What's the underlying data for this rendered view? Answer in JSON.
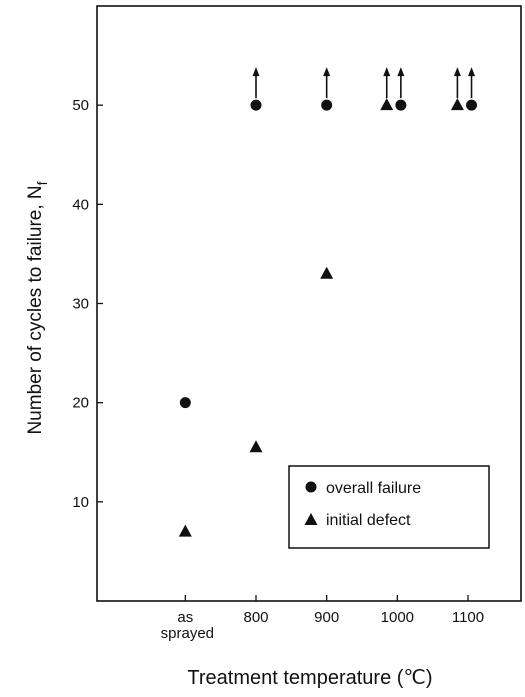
{
  "chart_data": {
    "type": "scatter",
    "xlabel": "Treatment temperature (℃)",
    "ylabel_main": "Number of cycles to failure, N",
    "ylabel_sub": "f",
    "x_tick_labels": [
      {
        "value": 700,
        "lines": [
          "as",
          "sprayed"
        ]
      },
      {
        "value": 800,
        "lines": [
          "800"
        ]
      },
      {
        "value": 900,
        "lines": [
          "900"
        ]
      },
      {
        "value": 1000,
        "lines": [
          "1000"
        ]
      },
      {
        "value": 1100,
        "lines": [
          "1100"
        ]
      }
    ],
    "y_ticks": [
      10,
      20,
      30,
      40,
      50
    ],
    "xlim": [
      575,
      1175
    ],
    "ylim": [
      0,
      60
    ],
    "series": [
      {
        "name": "overall failure",
        "marker": "circle",
        "points": [
          {
            "x": 700,
            "y": 20,
            "runout": false
          },
          {
            "x": 800,
            "y": 50,
            "runout": true
          },
          {
            "x": 900,
            "y": 50,
            "runout": true
          },
          {
            "x": 1005,
            "y": 50,
            "runout": true
          },
          {
            "x": 1105,
            "y": 50,
            "runout": true
          }
        ]
      },
      {
        "name": "initial defect",
        "marker": "triangle",
        "points": [
          {
            "x": 700,
            "y": 7,
            "runout": false
          },
          {
            "x": 800,
            "y": 15.5,
            "runout": false
          },
          {
            "x": 900,
            "y": 33,
            "runout": false
          },
          {
            "x": 985,
            "y": 50,
            "runout": true
          },
          {
            "x": 1085,
            "y": 50,
            "runout": true
          }
        ]
      }
    ],
    "legend": {
      "position": "bottom-right inside plot"
    },
    "grid": false,
    "color": "#111111"
  }
}
